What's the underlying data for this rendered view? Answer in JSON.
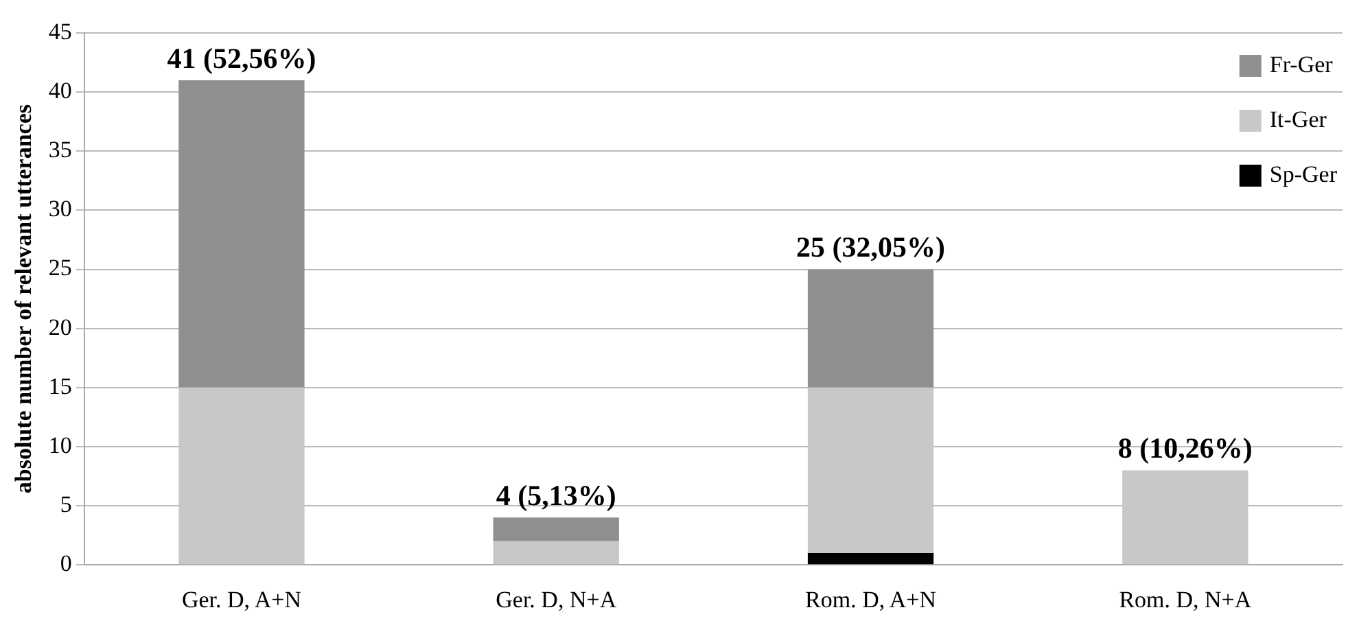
{
  "chart_data": {
    "type": "bar",
    "stacked": true,
    "ylabel": "absolute number of relevant utterances",
    "categories": [
      "Ger. D, A+N",
      "Ger. D, N+A",
      "Rom. D, A+N",
      "Rom. D, N+A"
    ],
    "series": [
      {
        "name": "Sp-Ger",
        "color": "#000000",
        "values": [
          0,
          0,
          1,
          0
        ]
      },
      {
        "name": "It-Ger",
        "color": "#c8c8c8",
        "values": [
          15,
          2,
          14,
          8
        ]
      },
      {
        "name": "Fr-Ger",
        "color": "#8f8f8f",
        "values": [
          26,
          2,
          10,
          0
        ]
      }
    ],
    "totals": [
      "41 (52,56%)",
      "4 (5,13%)",
      "25 (32,05%)",
      "8 (10,26%)"
    ],
    "ylim": [
      0,
      45
    ],
    "yticks": [
      0,
      5,
      10,
      15,
      20,
      25,
      30,
      35,
      40,
      45
    ],
    "grid": "y",
    "legend": "top right"
  }
}
